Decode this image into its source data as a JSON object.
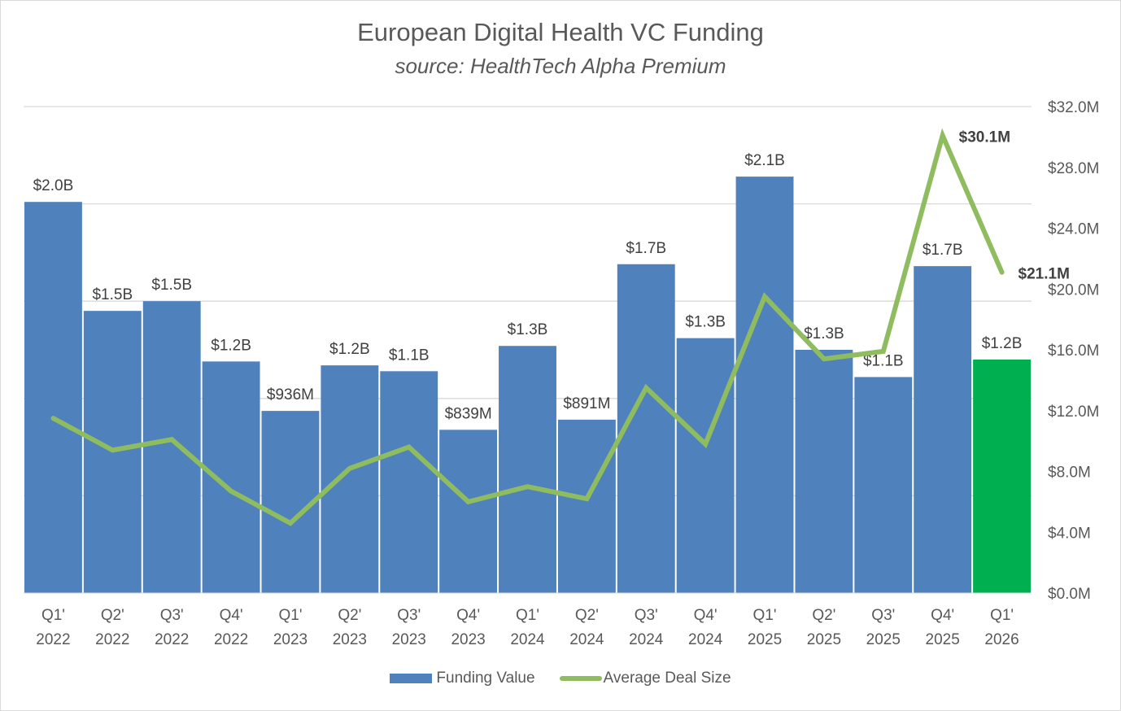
{
  "chart_data": {
    "type": "bar",
    "combo": "bar + line (secondary axis)",
    "title": "European Digital Health VC Funding",
    "subtitle": "source: HealthTech Alpha Premium",
    "categories": [
      [
        "Q1'",
        "2022"
      ],
      [
        "Q2'",
        "2022"
      ],
      [
        "Q3'",
        "2022"
      ],
      [
        "Q4'",
        "2022"
      ],
      [
        "Q1'",
        "2023"
      ],
      [
        "Q2'",
        "2023"
      ],
      [
        "Q3'",
        "2023"
      ],
      [
        "Q4'",
        "2023"
      ],
      [
        "Q1'",
        "2024"
      ],
      [
        "Q2'",
        "2024"
      ],
      [
        "Q3'",
        "2024"
      ],
      [
        "Q4'",
        "2024"
      ],
      [
        "Q1'",
        "2025"
      ],
      [
        "Q2'",
        "2025"
      ],
      [
        "Q3'",
        "2025"
      ],
      [
        "Q4'",
        "2025"
      ],
      [
        "Q1'",
        "2026"
      ]
    ],
    "series": [
      {
        "name": "Funding Value",
        "type": "bar",
        "axis": "primary",
        "unit": "USD billions",
        "color": "#4f81bd",
        "highlight_color": "#00b050",
        "highlight_index": 16,
        "values": [
          2.01,
          1.45,
          1.5,
          1.19,
          0.936,
          1.17,
          1.14,
          0.839,
          1.27,
          0.891,
          1.69,
          1.31,
          2.14,
          1.25,
          1.11,
          1.68,
          1.2
        ],
        "labels": [
          "$2.0B",
          "$1.5B",
          "$1.5B",
          "$1.2B",
          "$936M",
          "$1.2B",
          "$1.1B",
          "$839M",
          "$1.3B",
          "$891M",
          "$1.7B",
          "$1.3B",
          "$2.1B",
          "$1.3B",
          "$1.1B",
          "$1.7B",
          "$1.2B"
        ]
      },
      {
        "name": "Average Deal Size",
        "type": "line",
        "axis": "secondary",
        "unit": "USD millions",
        "color": "#8fbc5f",
        "values": [
          11.5,
          9.4,
          10.1,
          6.7,
          4.6,
          8.2,
          9.6,
          6.0,
          7.0,
          6.2,
          13.5,
          9.8,
          19.5,
          15.4,
          15.9,
          30.1,
          21.1
        ],
        "annotations": [
          {
            "index": 15,
            "text": "$30.1M"
          },
          {
            "index": 16,
            "text": "$21.1M"
          }
        ]
      }
    ],
    "primary_axis": {
      "visible": false,
      "ylim": [
        0,
        2.5
      ],
      "gridlines": [
        0,
        0.5,
        1.0,
        1.5,
        2.0,
        2.5
      ]
    },
    "secondary_axis": {
      "visible": true,
      "ylim": [
        0,
        32
      ],
      "ticks": [
        0,
        4,
        8,
        12,
        16,
        20,
        24,
        28,
        32
      ],
      "tick_labels": [
        "$0.0M",
        "$4.0M",
        "$8.0M",
        "$12.0M",
        "$16.0M",
        "$20.0M",
        "$24.0M",
        "$28.0M",
        "$32.0M"
      ]
    },
    "grid": true,
    "legend": {
      "position": "bottom",
      "entries": [
        "Funding Value",
        "Average Deal Size"
      ]
    },
    "xlabel": "",
    "ylabel": ""
  }
}
